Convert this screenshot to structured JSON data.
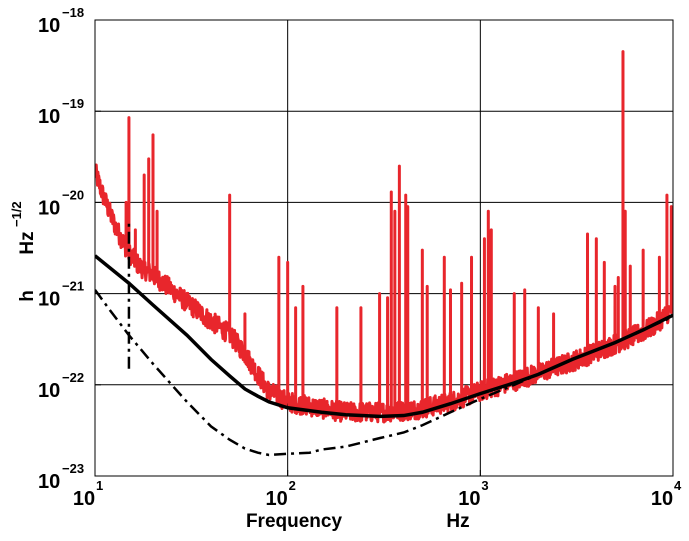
{
  "chart_data": {
    "type": "line",
    "title": "",
    "xlabel": "Frequency",
    "xunit": "Hz",
    "ylabel": "h",
    "yunit": "Hz",
    "yunit_exp": "−1/2",
    "xscale": "log",
    "yscale": "log",
    "xlim": [
      10,
      10000
    ],
    "ylim": [
      1e-23,
      1e-18
    ],
    "grid": true,
    "x_ticks": [
      {
        "base": "10",
        "exp": "1"
      },
      {
        "base": "10",
        "exp": "2"
      },
      {
        "base": "10",
        "exp": "3"
      },
      {
        "base": "10",
        "exp": "4"
      }
    ],
    "y_ticks": [
      {
        "base": "10",
        "exp": "−23"
      },
      {
        "base": "10",
        "exp": "−22"
      },
      {
        "base": "10",
        "exp": "−21"
      },
      {
        "base": "10",
        "exp": "−20"
      },
      {
        "base": "10",
        "exp": "−19"
      },
      {
        "base": "10",
        "exp": "−18"
      }
    ],
    "series": [
      {
        "color": "#e8262c",
        "style": "solid",
        "floor": [
          [
            10,
            2.2e-20
          ],
          [
            11,
            1.2e-20
          ],
          [
            12,
            7.5e-21
          ],
          [
            13,
            5e-21
          ],
          [
            15,
            2.8e-21
          ],
          [
            17,
            2e-21
          ],
          [
            20,
            1.6e-21
          ],
          [
            25,
            1.1e-21
          ],
          [
            30,
            8e-22
          ],
          [
            40,
            5e-22
          ],
          [
            50,
            3.6e-22
          ],
          [
            60,
            2.2e-22
          ],
          [
            70,
            1.3e-22
          ],
          [
            80,
            8.5e-23
          ],
          [
            100,
            6.5e-23
          ],
          [
            150,
            5.5e-23
          ],
          [
            200,
            5e-23
          ],
          [
            300,
            5e-23
          ],
          [
            400,
            5.2e-23
          ],
          [
            500,
            5.5e-23
          ],
          [
            700,
            6.5e-23
          ],
          [
            1000,
            8.5e-23
          ],
          [
            1500,
            1.1e-22
          ],
          [
            2000,
            1.35e-22
          ],
          [
            3000,
            1.8e-22
          ],
          [
            4000,
            2.3e-22
          ],
          [
            5000,
            2.8e-22
          ],
          [
            6000,
            3.3e-22
          ],
          [
            7000,
            3.8e-22
          ],
          [
            8000,
            4.5e-22
          ],
          [
            9000,
            5.6e-22
          ],
          [
            10000,
            7e-22
          ]
        ],
        "peaks": [
          [
            14.5,
            1e-20
          ],
          [
            15,
            8.5e-20
          ],
          [
            16.2,
            5e-21
          ],
          [
            18,
            2e-20
          ],
          [
            19,
            3e-20
          ],
          [
            20,
            5.5e-20
          ],
          [
            21,
            8e-21
          ],
          [
            50,
            1.2e-20
          ],
          [
            60,
            6e-22
          ],
          [
            90,
            2.5e-21
          ],
          [
            100,
            2.2e-21
          ],
          [
            110,
            7e-22
          ],
          [
            120,
            1.2e-21
          ],
          [
            180,
            7e-22
          ],
          [
            240,
            7e-22
          ],
          [
            300,
            1e-21
          ],
          [
            330,
            9e-22
          ],
          [
            345,
            1.3e-20
          ],
          [
            360,
            8e-21
          ],
          [
            380,
            2.5e-20
          ],
          [
            410,
            1.2e-20
          ],
          [
            420,
            9e-21
          ],
          [
            500,
            3e-21
          ],
          [
            530,
            1.2e-21
          ],
          [
            650,
            2.5e-21
          ],
          [
            700,
            1.1e-21
          ],
          [
            800,
            1.3e-21
          ],
          [
            900,
            2.5e-21
          ],
          [
            1050,
            4e-21
          ],
          [
            1100,
            8e-21
          ],
          [
            1140,
            5e-21
          ],
          [
            1500,
            1e-21
          ],
          [
            1700,
            1.1e-21
          ],
          [
            2000,
            7e-22
          ],
          [
            2400,
            6e-22
          ],
          [
            3600,
            4.5e-21
          ],
          [
            4000,
            4e-21
          ],
          [
            4400,
            2.2e-21
          ],
          [
            5000,
            1.2e-21
          ],
          [
            5200,
            1.5e-21
          ],
          [
            5500,
            4.5e-19
          ],
          [
            5650,
            8e-21
          ],
          [
            6000,
            2e-21
          ],
          [
            7000,
            3e-21
          ],
          [
            8500,
            2.5e-21
          ],
          [
            9300,
            1.2e-20
          ],
          [
            9800,
            9e-21
          ]
        ]
      },
      {
        "color": "#000000",
        "style": "solid",
        "points": [
          [
            10,
            2.6e-21
          ],
          [
            15,
            1.3e-21
          ],
          [
            20,
            7.5e-22
          ],
          [
            30,
            3.5e-22
          ],
          [
            40,
            1.9e-22
          ],
          [
            50,
            1.25e-22
          ],
          [
            60,
            9e-23
          ],
          [
            70,
            7.5e-23
          ],
          [
            80,
            6.5e-23
          ],
          [
            100,
            5.6e-23
          ],
          [
            150,
            5e-23
          ],
          [
            200,
            4.7e-23
          ],
          [
            300,
            4.5e-23
          ],
          [
            400,
            4.6e-23
          ],
          [
            500,
            5e-23
          ],
          [
            700,
            6.2e-23
          ],
          [
            1000,
            8e-23
          ],
          [
            1500,
            1.05e-22
          ],
          [
            2000,
            1.3e-22
          ],
          [
            3000,
            1.9e-22
          ],
          [
            5000,
            2.9e-22
          ],
          [
            7000,
            4e-22
          ],
          [
            10000,
            5.8e-22
          ]
        ]
      },
      {
        "color": "#000000",
        "style": "dashdot",
        "points": [
          [
            10,
            1.1e-21
          ],
          [
            12,
            6.5e-22
          ],
          [
            15,
            3.5e-22
          ],
          [
            20,
            1.7e-22
          ],
          [
            25,
            1e-22
          ],
          [
            30,
            6.5e-23
          ],
          [
            40,
            3.5e-23
          ],
          [
            50,
            2.5e-23
          ],
          [
            60,
            2e-23
          ],
          [
            70,
            1.8e-23
          ],
          [
            80,
            1.7e-23
          ],
          [
            100,
            1.75e-23
          ],
          [
            130,
            1.8e-23
          ],
          [
            150,
            1.95e-23
          ],
          [
            200,
            2.1e-23
          ],
          [
            300,
            2.6e-23
          ],
          [
            400,
            3e-23
          ],
          [
            500,
            3.6e-23
          ],
          [
            700,
            5e-23
          ],
          [
            1000,
            7e-23
          ],
          [
            1500,
            1e-22
          ],
          [
            2000,
            1.3e-22
          ],
          [
            3000,
            1.9e-22
          ],
          [
            5000,
            2.9e-22
          ],
          [
            7000,
            4e-22
          ],
          [
            10000,
            5.6e-22
          ]
        ],
        "spike": [
          [
            15,
            1.5e-22
          ],
          [
            15,
            6e-21
          ]
        ]
      }
    ]
  }
}
